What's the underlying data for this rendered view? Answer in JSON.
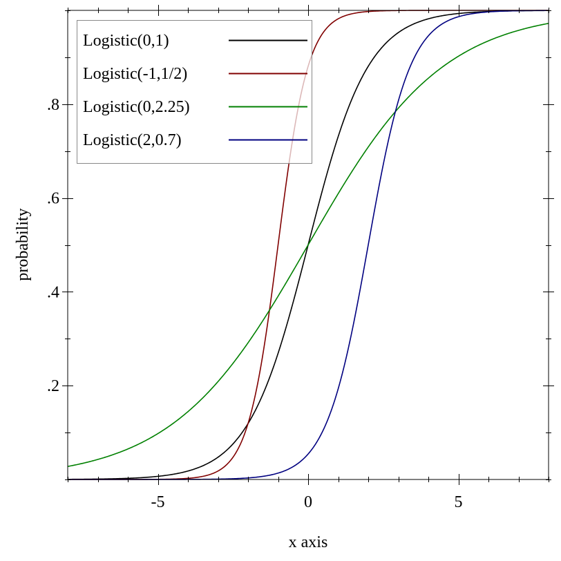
{
  "chart_data": {
    "type": "line",
    "title": "",
    "xlabel": "x axis",
    "ylabel": "probability",
    "xlim": [
      -8,
      8
    ],
    "ylim": [
      0,
      1
    ],
    "x_ticks": [
      {
        "value": -5,
        "label": "-5"
      },
      {
        "value": 0,
        "label": "0"
      },
      {
        "value": 5,
        "label": "5"
      }
    ],
    "y_ticks": [
      {
        "value": 0.2,
        "label": ".2"
      },
      {
        "value": 0.4,
        "label": ".4"
      },
      {
        "value": 0.6,
        "label": ".6"
      },
      {
        "value": 0.8,
        "label": ".8"
      }
    ],
    "x_minor_step": 1,
    "y_minor_step": 0.1,
    "grid": false,
    "legend_placement": "top-left",
    "series": [
      {
        "name": "Logistic(0,1)",
        "function": "logistic-cdf",
        "mean": 0,
        "scale": 1,
        "color": "#000000"
      },
      {
        "name": "Logistic(-1,1/2)",
        "function": "logistic-cdf",
        "mean": -1,
        "scale": 0.5,
        "color": "#800000"
      },
      {
        "name": "Logistic(0,2.25)",
        "function": "logistic-cdf",
        "mean": 0,
        "scale": 2.25,
        "color": "#008000"
      },
      {
        "name": "Logistic(2,0.7)",
        "function": "logistic-cdf",
        "mean": 2,
        "scale": 0.7,
        "color": "#000080"
      }
    ]
  }
}
